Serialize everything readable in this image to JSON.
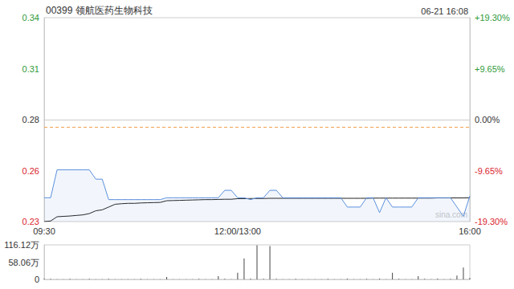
{
  "chart_data": [
    {
      "type": "line",
      "title": "00399 领航医药生物科技",
      "date": "06-21 16:08",
      "watermark": "sina.com",
      "categories": [
        "09:30",
        null,
        null,
        null,
        null,
        null,
        null,
        null,
        null,
        null,
        null,
        null,
        null,
        null,
        null,
        null,
        null,
        null,
        null,
        null,
        null,
        null,
        null,
        null,
        null,
        null,
        null,
        null,
        null,
        null,
        "12:00/13:00",
        null,
        null,
        null,
        null,
        null,
        null,
        null,
        null,
        null,
        null,
        null,
        null,
        null,
        null,
        null,
        null,
        null,
        null,
        null,
        null,
        null,
        null,
        null,
        null,
        null,
        null,
        null,
        null,
        null,
        null,
        null,
        null,
        null,
        null,
        null,
        "16:00"
      ],
      "series": [
        {
          "color": "#5b8fdc",
          "values": [
            0.242,
            0.242,
            0.257,
            0.257,
            0.257,
            0.257,
            0.257,
            0.257,
            0.252,
            0.252,
            0.241,
            0.241,
            0.241,
            0.241,
            0.241,
            0.241,
            0.241,
            0.241,
            0.241,
            0.242,
            0.242,
            0.242,
            0.242,
            0.242,
            0.242,
            0.242,
            0.242,
            0.242,
            0.246,
            0.246,
            0.242,
            0.242,
            0.241,
            0.242,
            0.242,
            0.246,
            0.246,
            0.242,
            0.242,
            0.242,
            0.242,
            0.242,
            0.242,
            0.242,
            0.242,
            0.242,
            0.242,
            0.237,
            0.237,
            0.237,
            0.242,
            0.242,
            0.234,
            0.242,
            0.237,
            0.237,
            0.237,
            0.237,
            0.242,
            0.242,
            0.242,
            0.242,
            0.242,
            0.242,
            0.237,
            0.232,
            0.243
          ]
        },
        {
          "color": "#222222",
          "values": [
            0.2292,
            0.2295,
            0.2318,
            0.232,
            0.2322,
            0.2325,
            0.2328,
            0.2335,
            0.235,
            0.2355,
            0.237,
            0.2385,
            0.2388,
            0.239,
            0.239,
            0.2392,
            0.2393,
            0.2394,
            0.2395,
            0.2404,
            0.2405,
            0.2406,
            0.2407,
            0.2408,
            0.2409,
            0.241,
            0.241,
            0.2411,
            0.2412,
            0.2412,
            0.2415,
            0.2415,
            0.2416,
            0.2416,
            0.2416,
            0.2417,
            0.2417,
            0.2417,
            0.2417,
            0.2417,
            0.2417,
            0.2417,
            0.2417,
            0.2417,
            0.2417,
            0.2417,
            0.2417,
            0.2417,
            0.2417,
            0.2417,
            0.2417,
            0.2418,
            0.2418,
            0.2418,
            0.2418,
            0.2418,
            0.2418,
            0.2418,
            0.2418,
            0.2418,
            0.2418,
            0.2419,
            0.2419,
            0.2419,
            0.2419,
            0.2419,
            0.242
          ]
        }
      ],
      "ylim": [
        0.2292,
        0.3388
      ],
      "yticks": [
        {
          "value": 0.2292,
          "label": "0.23"
        },
        {
          "value": 0.2566,
          "label": "0.26"
        },
        {
          "value": 0.284,
          "label": "0.28"
        },
        {
          "value": 0.3114,
          "label": "0.31"
        },
        {
          "value": 0.3388,
          "label": "0.34"
        }
      ],
      "y2lim": [
        -19.3,
        19.3
      ],
      "y2ticks": [
        {
          "value": -19.3,
          "label": "-19.30%"
        },
        {
          "value": -9.65,
          "label": "-9.65%"
        },
        {
          "value": 0,
          "label": "0.00%"
        },
        {
          "value": 9.65,
          "label": "+9.65%"
        },
        {
          "value": 19.3,
          "label": "+19.30%"
        }
      ],
      "reference_line": 0.284,
      "grid": false
    },
    {
      "type": "bar",
      "categories": [
        "09:30",
        null,
        null,
        null,
        null,
        null,
        null,
        null,
        null,
        null,
        null,
        null,
        null,
        null,
        null,
        null,
        null,
        null,
        null,
        null,
        null,
        null,
        null,
        null,
        null,
        null,
        null,
        null,
        null,
        null,
        "12:00/13:00",
        null,
        null,
        null,
        null,
        null,
        null,
        null,
        null,
        null,
        null,
        null,
        null,
        null,
        null,
        null,
        null,
        null,
        null,
        null,
        null,
        null,
        null,
        null,
        null,
        null,
        null,
        null,
        null,
        null,
        null,
        null,
        null,
        null,
        null,
        null,
        "16:00"
      ],
      "values": [
        3,
        2,
        1,
        1,
        2,
        1,
        1,
        2,
        1,
        1,
        2,
        1,
        1,
        1,
        1,
        2,
        1,
        1,
        1,
        8,
        1,
        1,
        1,
        1,
        2,
        1,
        1,
        11,
        2,
        1,
        22,
        70,
        3,
        115,
        2,
        112,
        2,
        1,
        1,
        2,
        1,
        1,
        1,
        1,
        2,
        1,
        1,
        3,
        1,
        1,
        2,
        1,
        3,
        1,
        22,
        2,
        1,
        1,
        11,
        2,
        1,
        3,
        1,
        2,
        13,
        40,
        5
      ],
      "color": "#444444",
      "ylim": [
        0,
        116.12
      ],
      "yticks": [
        0,
        {
          "value": 58.06,
          "label": "58.06万"
        },
        {
          "value": 116.12,
          "label": "116.12万"
        }
      ],
      "tick_labels": "y",
      "grid": false
    }
  ]
}
